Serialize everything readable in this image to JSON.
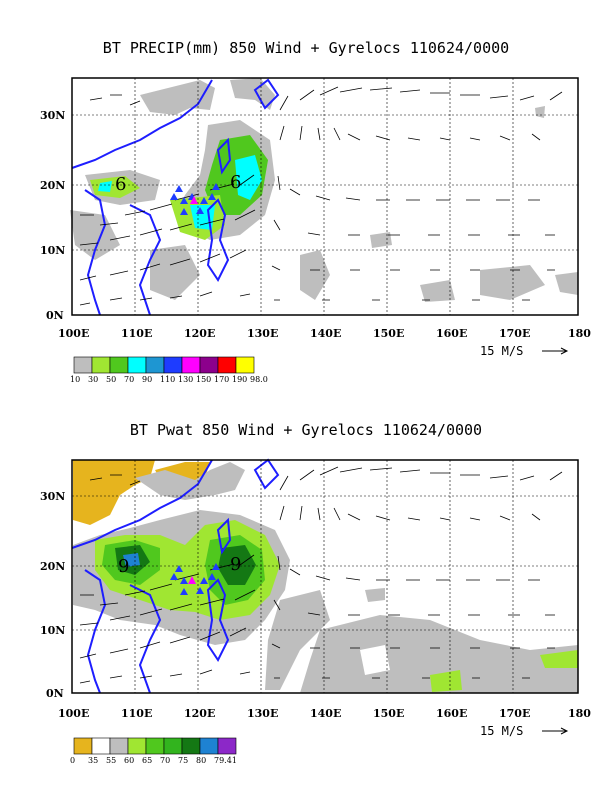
{
  "panels": [
    {
      "id": "precip",
      "title": "BT PRECIP(mm) 850 Wind + Gyrelocs 110624/0000",
      "x_ticks": [
        "100E",
        "110E",
        "120E",
        "130E",
        "140E",
        "150E",
        "160E",
        "170E",
        "180"
      ],
      "y_ticks": [
        "0N",
        "10N",
        "20N",
        "30N"
      ],
      "vector_ref_label": "15 M/S",
      "legend": {
        "colors": [
          "#bebebe",
          "#a0e632",
          "#50c81e",
          "#00ffff",
          "#1e96d2",
          "#1e3cff",
          "#ff00ff",
          "#8c008c",
          "#ff0000",
          "#ffff00"
        ],
        "labels": [
          "10",
          "30",
          "50",
          "70",
          "90",
          "110",
          "130",
          "150",
          "170",
          "190",
          "98.0"
        ]
      },
      "gyre_markers": [
        "6",
        "6"
      ]
    },
    {
      "id": "pwat",
      "title": "BT Pwat 850 Wind + Gyrelocs 110624/0000",
      "x_ticks": [
        "100E",
        "110E",
        "120E",
        "130E",
        "140E",
        "150E",
        "160E",
        "170E",
        "180"
      ],
      "y_ticks": [
        "0N",
        "10N",
        "20N",
        "30N"
      ],
      "vector_ref_label": "15 M/S",
      "legend": {
        "colors": [
          "#e6b41e",
          "#ffffff",
          "#bebebe",
          "#a0e632",
          "#50c81e",
          "#32b41e",
          "#147814",
          "#1e82d2",
          "#8c28c8"
        ],
        "labels": [
          "0",
          "35",
          "55",
          "60",
          "65",
          "70",
          "75",
          "80",
          "79.41"
        ]
      },
      "gyre_markers": [
        "9",
        "9"
      ]
    }
  ],
  "colors": {
    "coast": "#1e1eff",
    "precip_fill": "#bebebe",
    "marker_triangle": "#1e3cff",
    "marker_center": "#ff00ff"
  }
}
